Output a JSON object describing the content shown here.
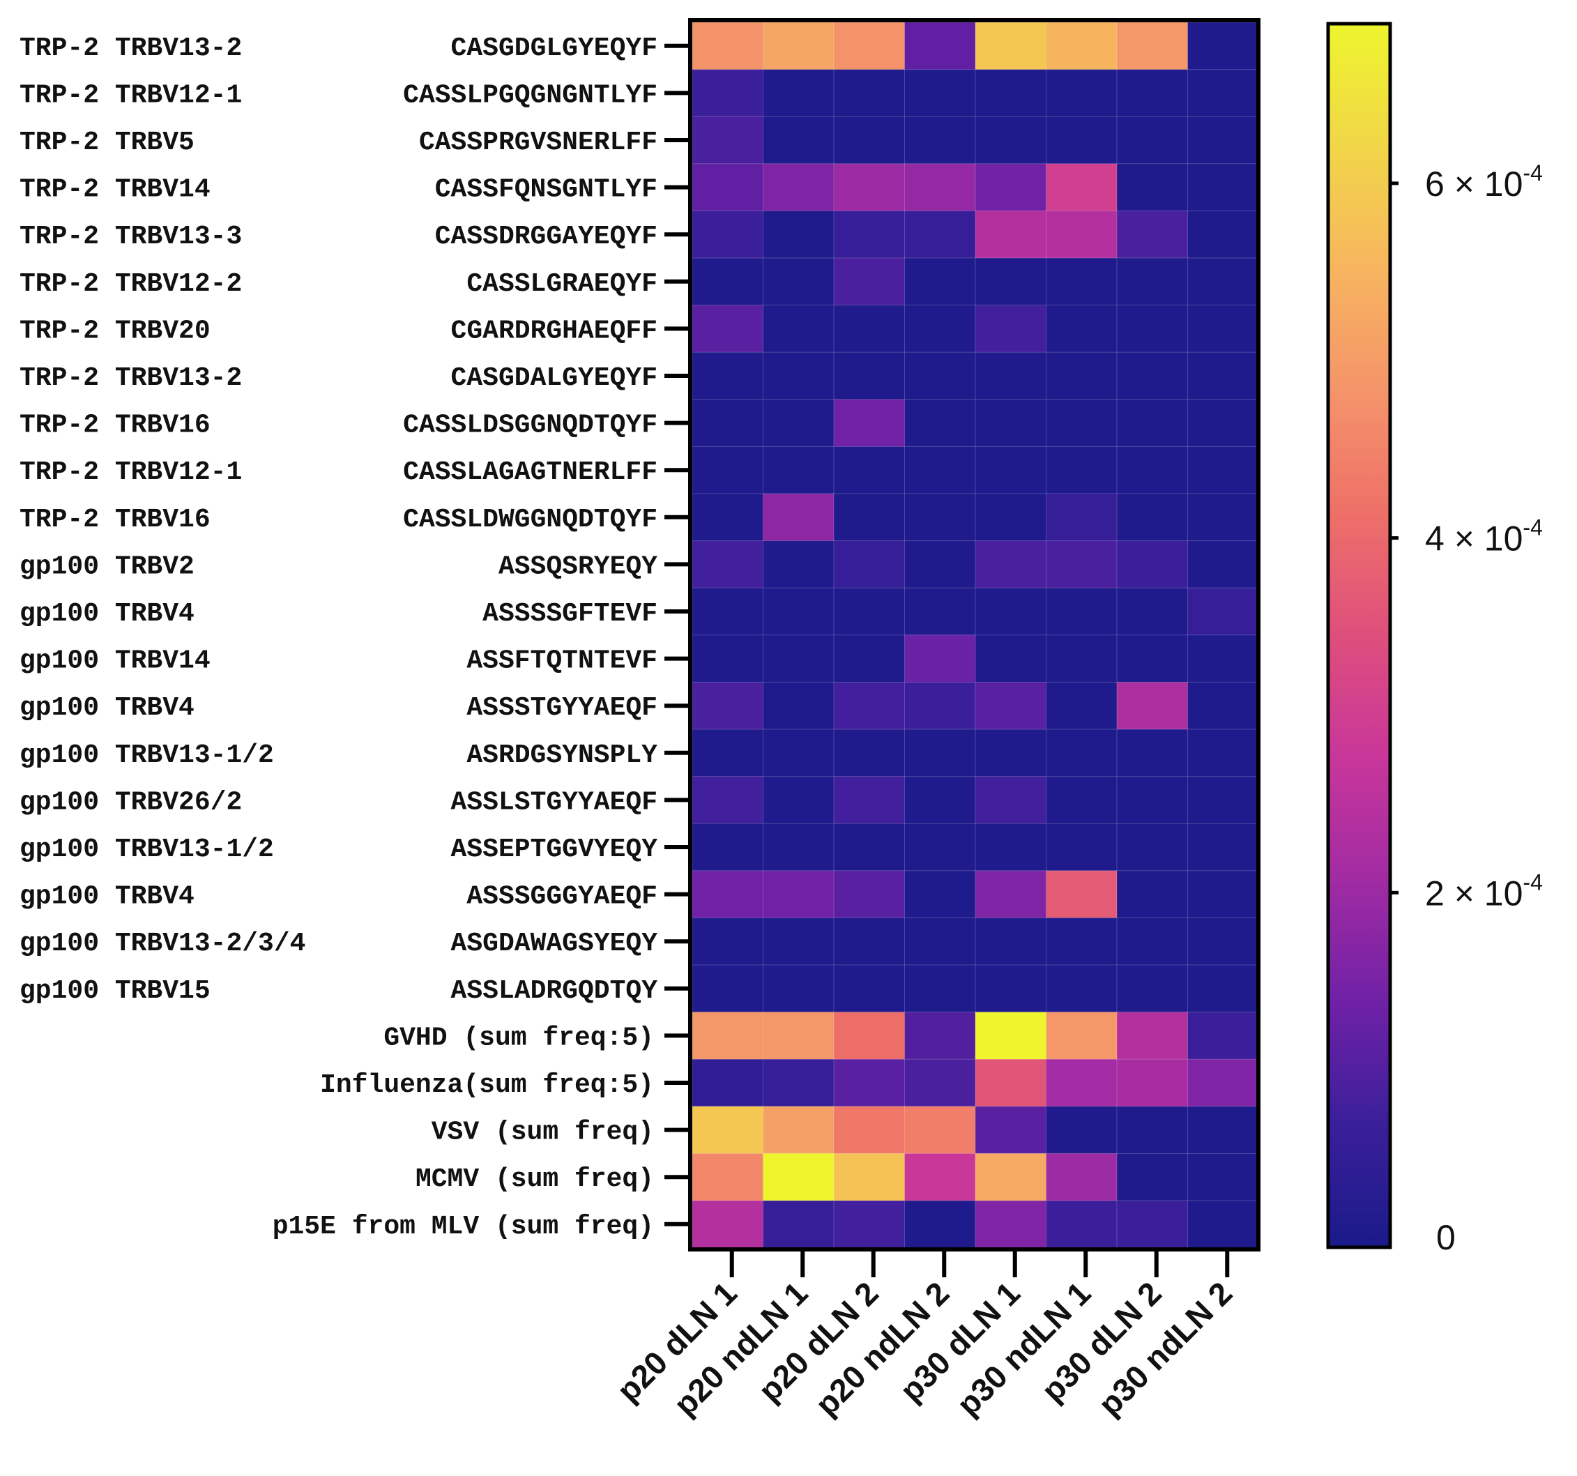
{
  "chart_data": {
    "type": "heatmap",
    "title": "",
    "xlabel": "",
    "ylabel": "",
    "columns": [
      "p20 dLN 1",
      "p20 ndLN 1",
      "p20 dLN 2",
      "p20 ndLN 2",
      "p30 dLN 1",
      "p30 ndLN 1",
      "p30 dLN 2",
      "p30 ndLN 2"
    ],
    "rows": [
      {
        "label": "TRP-2 TRBV13-2",
        "seq": "CASGDGLGYEQYF"
      },
      {
        "label": "TRP-2 TRBV12-1",
        "seq": "CASSLPGQGNGNTLYF"
      },
      {
        "label": "TRP-2 TRBV5",
        "seq": "CASSPRGVSNERLFF"
      },
      {
        "label": "TRP-2 TRBV14",
        "seq": "CASSFQNSGNTLYF"
      },
      {
        "label": "TRP-2 TRBV13-3",
        "seq": "CASSDRGGAYEQYF"
      },
      {
        "label": "TRP-2 TRBV12-2",
        "seq": "CASSLGRAEQYF"
      },
      {
        "label": "TRP-2 TRBV20",
        "seq": "CGARDRGHAEQFF"
      },
      {
        "label": "TRP-2 TRBV13-2",
        "seq": "CASGDALGYEQYF"
      },
      {
        "label": "TRP-2 TRBV16",
        "seq": "CASSLDSGGNQDTQYF"
      },
      {
        "label": "TRP-2 TRBV12-1",
        "seq": "CASSLAGAGTNERLFF"
      },
      {
        "label": "TRP-2 TRBV16",
        "seq": "CASSLDWGGNQDTQYF"
      },
      {
        "label": "gp100 TRBV2",
        "seq": "ASSQSRYEQY"
      },
      {
        "label": "gp100 TRBV4",
        "seq": "ASSSSGFTEVF"
      },
      {
        "label": "gp100 TRBV14",
        "seq": "ASSFTQTNTEVF"
      },
      {
        "label": "gp100 TRBV4",
        "seq": "ASSSTGYYAEQF"
      },
      {
        "label": "gp100 TRBV13-1/2",
        "seq": "ASRDGSYNSPLY"
      },
      {
        "label": "gp100 TRBV26/2",
        "seq": "ASSLSTGYYAEQF"
      },
      {
        "label": "gp100 TRBV13-1/2",
        "seq": "ASSEPTGGVYEQY"
      },
      {
        "label": "gp100 TRBV4",
        "seq": "ASSSGGGYAEQF"
      },
      {
        "label": "gp100 TRBV13-2/3/4",
        "seq": "ASGDAWAGSYEQY"
      },
      {
        "label": "gp100 TRBV15",
        "seq": "ASSLADRGQDTQY"
      },
      {
        "label": "GVHD (sum freq:5)",
        "seq": ""
      },
      {
        "label": "Influenza(sum freq:5)",
        "seq": ""
      },
      {
        "label": "VSV (sum freq)",
        "seq": ""
      },
      {
        "label": "MCMV (sum freq)",
        "seq": ""
      },
      {
        "label": "p15E from MLV (sum freq)",
        "seq": ""
      }
    ],
    "values": [
      [
        0.00048,
        0.00052,
        0.00048,
        0.00012,
        0.00059,
        0.00055,
        0.00049,
        1e-05
      ],
      [
        7e-05,
        1e-05,
        1e-05,
        1e-05,
        1e-05,
        1e-05,
        1e-05,
        1e-05
      ],
      [
        9e-05,
        1e-05,
        1e-05,
        1e-05,
        1e-05,
        1e-05,
        1e-05,
        1e-05
      ],
      [
        0.00012,
        0.00016,
        0.0002,
        0.00019,
        0.00014,
        0.0003,
        1e-05,
        1e-05
      ],
      [
        7e-05,
        1e-05,
        6e-05,
        6e-05,
        0.00024,
        0.00024,
        9e-05,
        1e-05
      ],
      [
        1e-05,
        1e-05,
        9e-05,
        1e-05,
        1e-05,
        1e-05,
        1e-05,
        1e-05
      ],
      [
        0.00011,
        1e-05,
        1e-05,
        1e-05,
        8e-05,
        1e-05,
        1e-05,
        1e-05
      ],
      [
        1e-05,
        1e-05,
        1e-05,
        1e-05,
        1e-05,
        1e-05,
        1e-05,
        1e-05
      ],
      [
        1e-05,
        1e-05,
        0.00014,
        1e-05,
        1e-05,
        1e-05,
        1e-05,
        1e-05
      ],
      [
        1e-05,
        1e-05,
        1e-05,
        1e-05,
        1e-05,
        1e-05,
        1e-05,
        1e-05
      ],
      [
        1e-05,
        0.00018,
        1e-05,
        1e-05,
        1e-05,
        6e-05,
        1e-05,
        1e-05
      ],
      [
        8e-05,
        1e-05,
        6e-05,
        1e-05,
        9e-05,
        9e-05,
        7e-05,
        1e-05
      ],
      [
        1e-05,
        1e-05,
        1e-05,
        1e-05,
        1e-05,
        1e-05,
        1e-05,
        6e-05
      ],
      [
        1e-05,
        1e-05,
        1e-05,
        0.00013,
        1e-05,
        1e-05,
        1e-05,
        1e-05
      ],
      [
        9e-05,
        1e-05,
        8e-05,
        7e-05,
        0.00011,
        1e-05,
        0.00023,
        1e-05
      ],
      [
        1e-05,
        1e-05,
        1e-05,
        1e-05,
        1e-05,
        1e-05,
        1e-05,
        1e-05
      ],
      [
        8e-05,
        1e-05,
        8e-05,
        1e-05,
        8e-05,
        1e-05,
        1e-05,
        1e-05
      ],
      [
        1e-05,
        1e-05,
        1e-05,
        1e-05,
        1e-05,
        1e-05,
        1e-05,
        1e-05
      ],
      [
        0.00014,
        0.00014,
        0.00011,
        1e-05,
        0.00016,
        0.00037,
        1e-05,
        1e-05
      ],
      [
        1e-05,
        1e-05,
        1e-05,
        1e-05,
        1e-05,
        1e-05,
        1e-05,
        1e-05
      ],
      [
        1e-05,
        1e-05,
        1e-05,
        1e-05,
        1e-05,
        1e-05,
        1e-05,
        1e-05
      ],
      [
        0.00049,
        0.00049,
        0.00041,
        0.0001,
        0.00069,
        0.00049,
        0.00024,
        7e-05
      ],
      [
        5e-05,
        6e-05,
        0.00011,
        9e-05,
        0.00036,
        0.00021,
        0.00022,
        0.00016
      ],
      [
        0.00059,
        0.00051,
        0.00043,
        0.00044,
        0.00011,
        1e-05,
        1e-05,
        1e-05
      ],
      [
        0.00046,
        0.00069,
        0.00058,
        0.00028,
        0.00053,
        0.0002,
        1e-05,
        1e-05
      ],
      [
        0.00024,
        6e-05,
        8e-05,
        1e-05,
        0.00016,
        7e-05,
        7e-05,
        1e-05
      ]
    ],
    "colorbar": {
      "range": [
        0,
        0.00069
      ],
      "colormap": "plasma",
      "colors": [
        "#1a1a8a",
        "#3a1f9a",
        "#6f21a6",
        "#a12ba3",
        "#c8369a",
        "#de4f7c",
        "#ee7068",
        "#f4946a",
        "#f7b55f",
        "#f1d648",
        "#eef52d"
      ],
      "ticks": [
        {
          "value": 0.0006,
          "mantissa": "6 × 10",
          "exponent": "-4"
        },
        {
          "value": 0.0004,
          "mantissa": "4 × 10",
          "exponent": "-4"
        },
        {
          "value": 0.0002,
          "mantissa": "2 × 10",
          "exponent": "-4"
        },
        {
          "value": 0,
          "mantissa": "0",
          "exponent": ""
        }
      ]
    }
  }
}
